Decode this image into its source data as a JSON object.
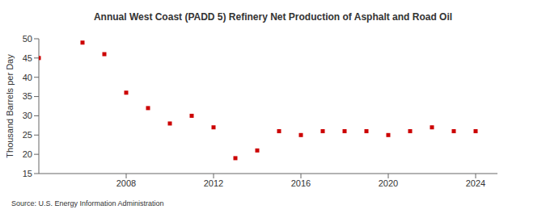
{
  "chart_data": {
    "type": "scatter",
    "title": "Annual West Coast (PADD 5) Refinery Net Production of Asphalt and Road Oil",
    "y_label": "Thousand Barrels per Day",
    "source": "Source: U.S. Energy Information Administration",
    "x": [
      2004,
      2006,
      2007,
      2008,
      2009,
      2010,
      2011,
      2012,
      2013,
      2014,
      2015,
      2016,
      2017,
      2018,
      2019,
      2020,
      2021,
      2022,
      2023,
      2024
    ],
    "values": [
      45,
      49,
      46,
      36,
      32,
      28,
      30,
      27,
      19,
      21,
      26,
      25,
      26,
      26,
      26,
      25,
      26,
      27,
      26,
      26
    ],
    "color": "#cc0000",
    "marker": "square",
    "xlim": [
      2004,
      2025
    ],
    "xticks": [
      2008,
      2012,
      2016,
      2020,
      2024
    ],
    "ylim": [
      15,
      50
    ],
    "yticks": [
      15,
      20,
      25,
      30,
      35,
      40,
      45,
      50
    ],
    "grid": false
  }
}
